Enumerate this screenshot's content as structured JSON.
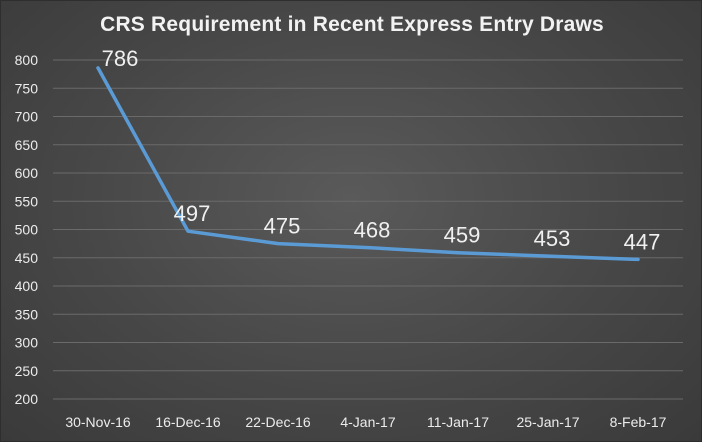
{
  "chart_data": {
    "type": "line",
    "title": "CRS Requirement in Recent Express Entry Draws",
    "xlabel": "",
    "ylabel": "",
    "categories": [
      "30-Nov-16",
      "16-Dec-16",
      "22-Dec-16",
      "4-Jan-17",
      "11-Jan-17",
      "25-Jan-17",
      "8-Feb-17"
    ],
    "series": [
      {
        "values": [
          786,
          497,
          475,
          468,
          459,
          453,
          447
        ]
      }
    ],
    "ylim": [
      200,
      800
    ],
    "ytick_step": 50,
    "grid": true,
    "legend": "none",
    "data_labels": true,
    "colors": {
      "line": "#5b9bd5",
      "grid": "#6a6a6a",
      "text": "#ececec"
    }
  }
}
